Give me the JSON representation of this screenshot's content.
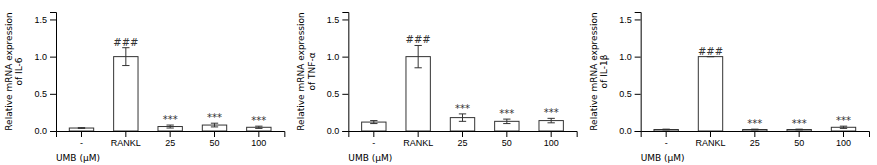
{
  "chart_data": [
    {
      "type": "bar",
      "ylabel": "Relative mRNA expression\nof IL-6",
      "xlabel": "UMB (μM)",
      "categories": [
        "-",
        "RANKL",
        "25",
        "50",
        "100"
      ],
      "values": [
        0.04,
        1.0,
        0.06,
        0.08,
        0.05
      ],
      "errors": [
        0.005,
        0.12,
        0.02,
        0.025,
        0.015
      ],
      "color": "#ffffff",
      "annotations": [
        {
          "text": "###",
          "category": "RANKL"
        },
        {
          "text": "***",
          "category": "25"
        },
        {
          "text": "***",
          "category": "50"
        },
        {
          "text": "***",
          "category": "100"
        }
      ],
      "ylim": [
        0,
        1.6
      ],
      "yticks": [
        {
          "value": 0,
          "label": "0.0"
        },
        0.5,
        {
          "value": 1,
          "label": "1.0"
        },
        1.5
      ],
      "grid": false
    },
    {
      "type": "bar",
      "ylabel": "Relative mRNA expression\nof TNF-α",
      "xlabel": "UMB (μM)",
      "categories": [
        "-",
        "RANKL",
        "25",
        "50",
        "100"
      ],
      "values": [
        0.12,
        1.0,
        0.18,
        0.13,
        0.14
      ],
      "errors": [
        0.02,
        0.15,
        0.05,
        0.03,
        0.03
      ],
      "color": "#ffffff",
      "annotations": [
        {
          "text": "###",
          "category": "RANKL"
        },
        {
          "text": "***",
          "category": "25"
        },
        {
          "text": "***",
          "category": "50"
        },
        {
          "text": "***",
          "category": "100"
        }
      ],
      "ylim": [
        0,
        1.6
      ],
      "yticks": [
        {
          "value": 0,
          "label": "0.0"
        },
        0.5,
        {
          "value": 1,
          "label": "1.0"
        },
        1.5
      ],
      "grid": false
    },
    {
      "type": "bar",
      "ylabel": "Relative mRNA expression\nof IL-1β",
      "xlabel": "UMB (μM)",
      "categories": [
        "-",
        "RANKL",
        "25",
        "50",
        "100"
      ],
      "values": [
        0.02,
        1.0,
        0.02,
        0.02,
        0.05
      ],
      "errors": [
        0.005,
        0.0,
        0.005,
        0.005,
        0.015
      ],
      "color": "#ffffff",
      "annotations": [
        {
          "text": "###",
          "category": "RANKL"
        },
        {
          "text": "***",
          "category": "25"
        },
        {
          "text": "***",
          "category": "50"
        },
        {
          "text": "***",
          "category": "100"
        }
      ],
      "ylim": [
        0,
        1.6
      ],
      "yticks": [
        {
          "value": 0,
          "label": "0.0"
        },
        0.5,
        {
          "value": 1,
          "label": "1.0"
        },
        1.5
      ],
      "grid": false
    }
  ]
}
